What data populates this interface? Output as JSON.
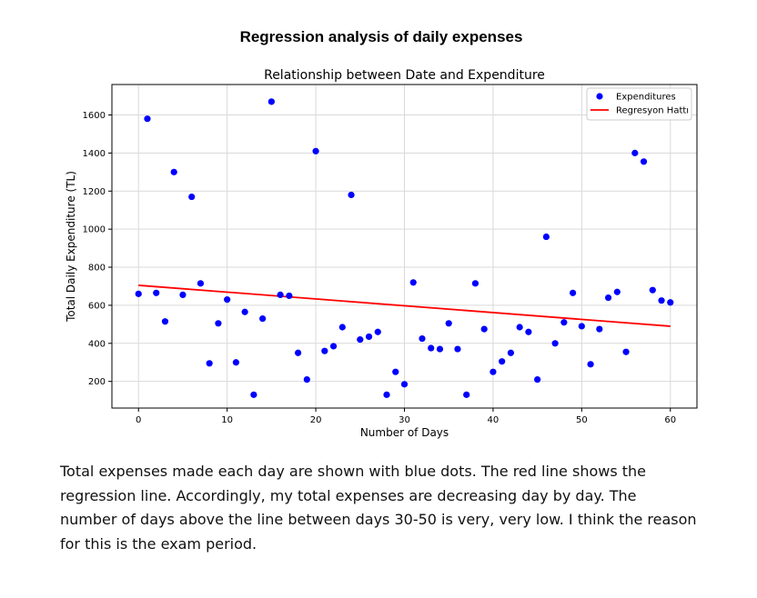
{
  "page": {
    "title": "Regression analysis of daily expenses",
    "caption": "Total expenses made each day are shown with blue dots. The red line shows the regression line. Accordingly, my total expenses are decreasing day by day. The number of days above the line between days 30-50 is very, very low. I think the reason for this is the exam period."
  },
  "chart_data": {
    "type": "scatter",
    "title": "Relationship between Date and Expenditure",
    "xlabel": "Number of Days",
    "ylabel": "Total Daily Expenditure (TL)",
    "xlim": [
      -3,
      63
    ],
    "ylim": [
      60,
      1760
    ],
    "xticks": [
      0,
      10,
      20,
      30,
      40,
      50,
      60
    ],
    "yticks": [
      200,
      400,
      600,
      800,
      1000,
      1200,
      1400,
      1600
    ],
    "grid": true,
    "legend_position": "top-right",
    "series": [
      {
        "name": "Expenditures",
        "kind": "scatter",
        "color": "#0000ff",
        "x": [
          0,
          1,
          2,
          3,
          4,
          5,
          6,
          7,
          8,
          9,
          10,
          11,
          12,
          13,
          14,
          15,
          16,
          17,
          18,
          19,
          20,
          21,
          22,
          23,
          24,
          25,
          26,
          27,
          28,
          29,
          30,
          31,
          32,
          33,
          34,
          35,
          36,
          37,
          38,
          39,
          40,
          41,
          42,
          43,
          44,
          45,
          46,
          47,
          48,
          49,
          50,
          51,
          52,
          53,
          54,
          55,
          56,
          57,
          58,
          59,
          60
        ],
        "y": [
          660,
          1580,
          665,
          515,
          1300,
          655,
          1170,
          715,
          295,
          505,
          630,
          300,
          565,
          130,
          530,
          1670,
          655,
          650,
          350,
          210,
          1410,
          360,
          385,
          485,
          1180,
          420,
          435,
          460,
          130,
          250,
          185,
          720,
          425,
          375,
          370,
          505,
          370,
          130,
          715,
          475,
          250,
          305,
          350,
          485,
          460,
          210,
          960,
          400,
          510,
          665,
          490,
          290,
          475,
          640,
          670,
          355,
          1400,
          1355,
          680,
          625,
          615
        ]
      },
      {
        "name": "Regresyon Hattı",
        "kind": "line",
        "color": "#ff0000",
        "x": [
          0,
          60
        ],
        "y": [
          705,
          490
        ]
      }
    ]
  }
}
